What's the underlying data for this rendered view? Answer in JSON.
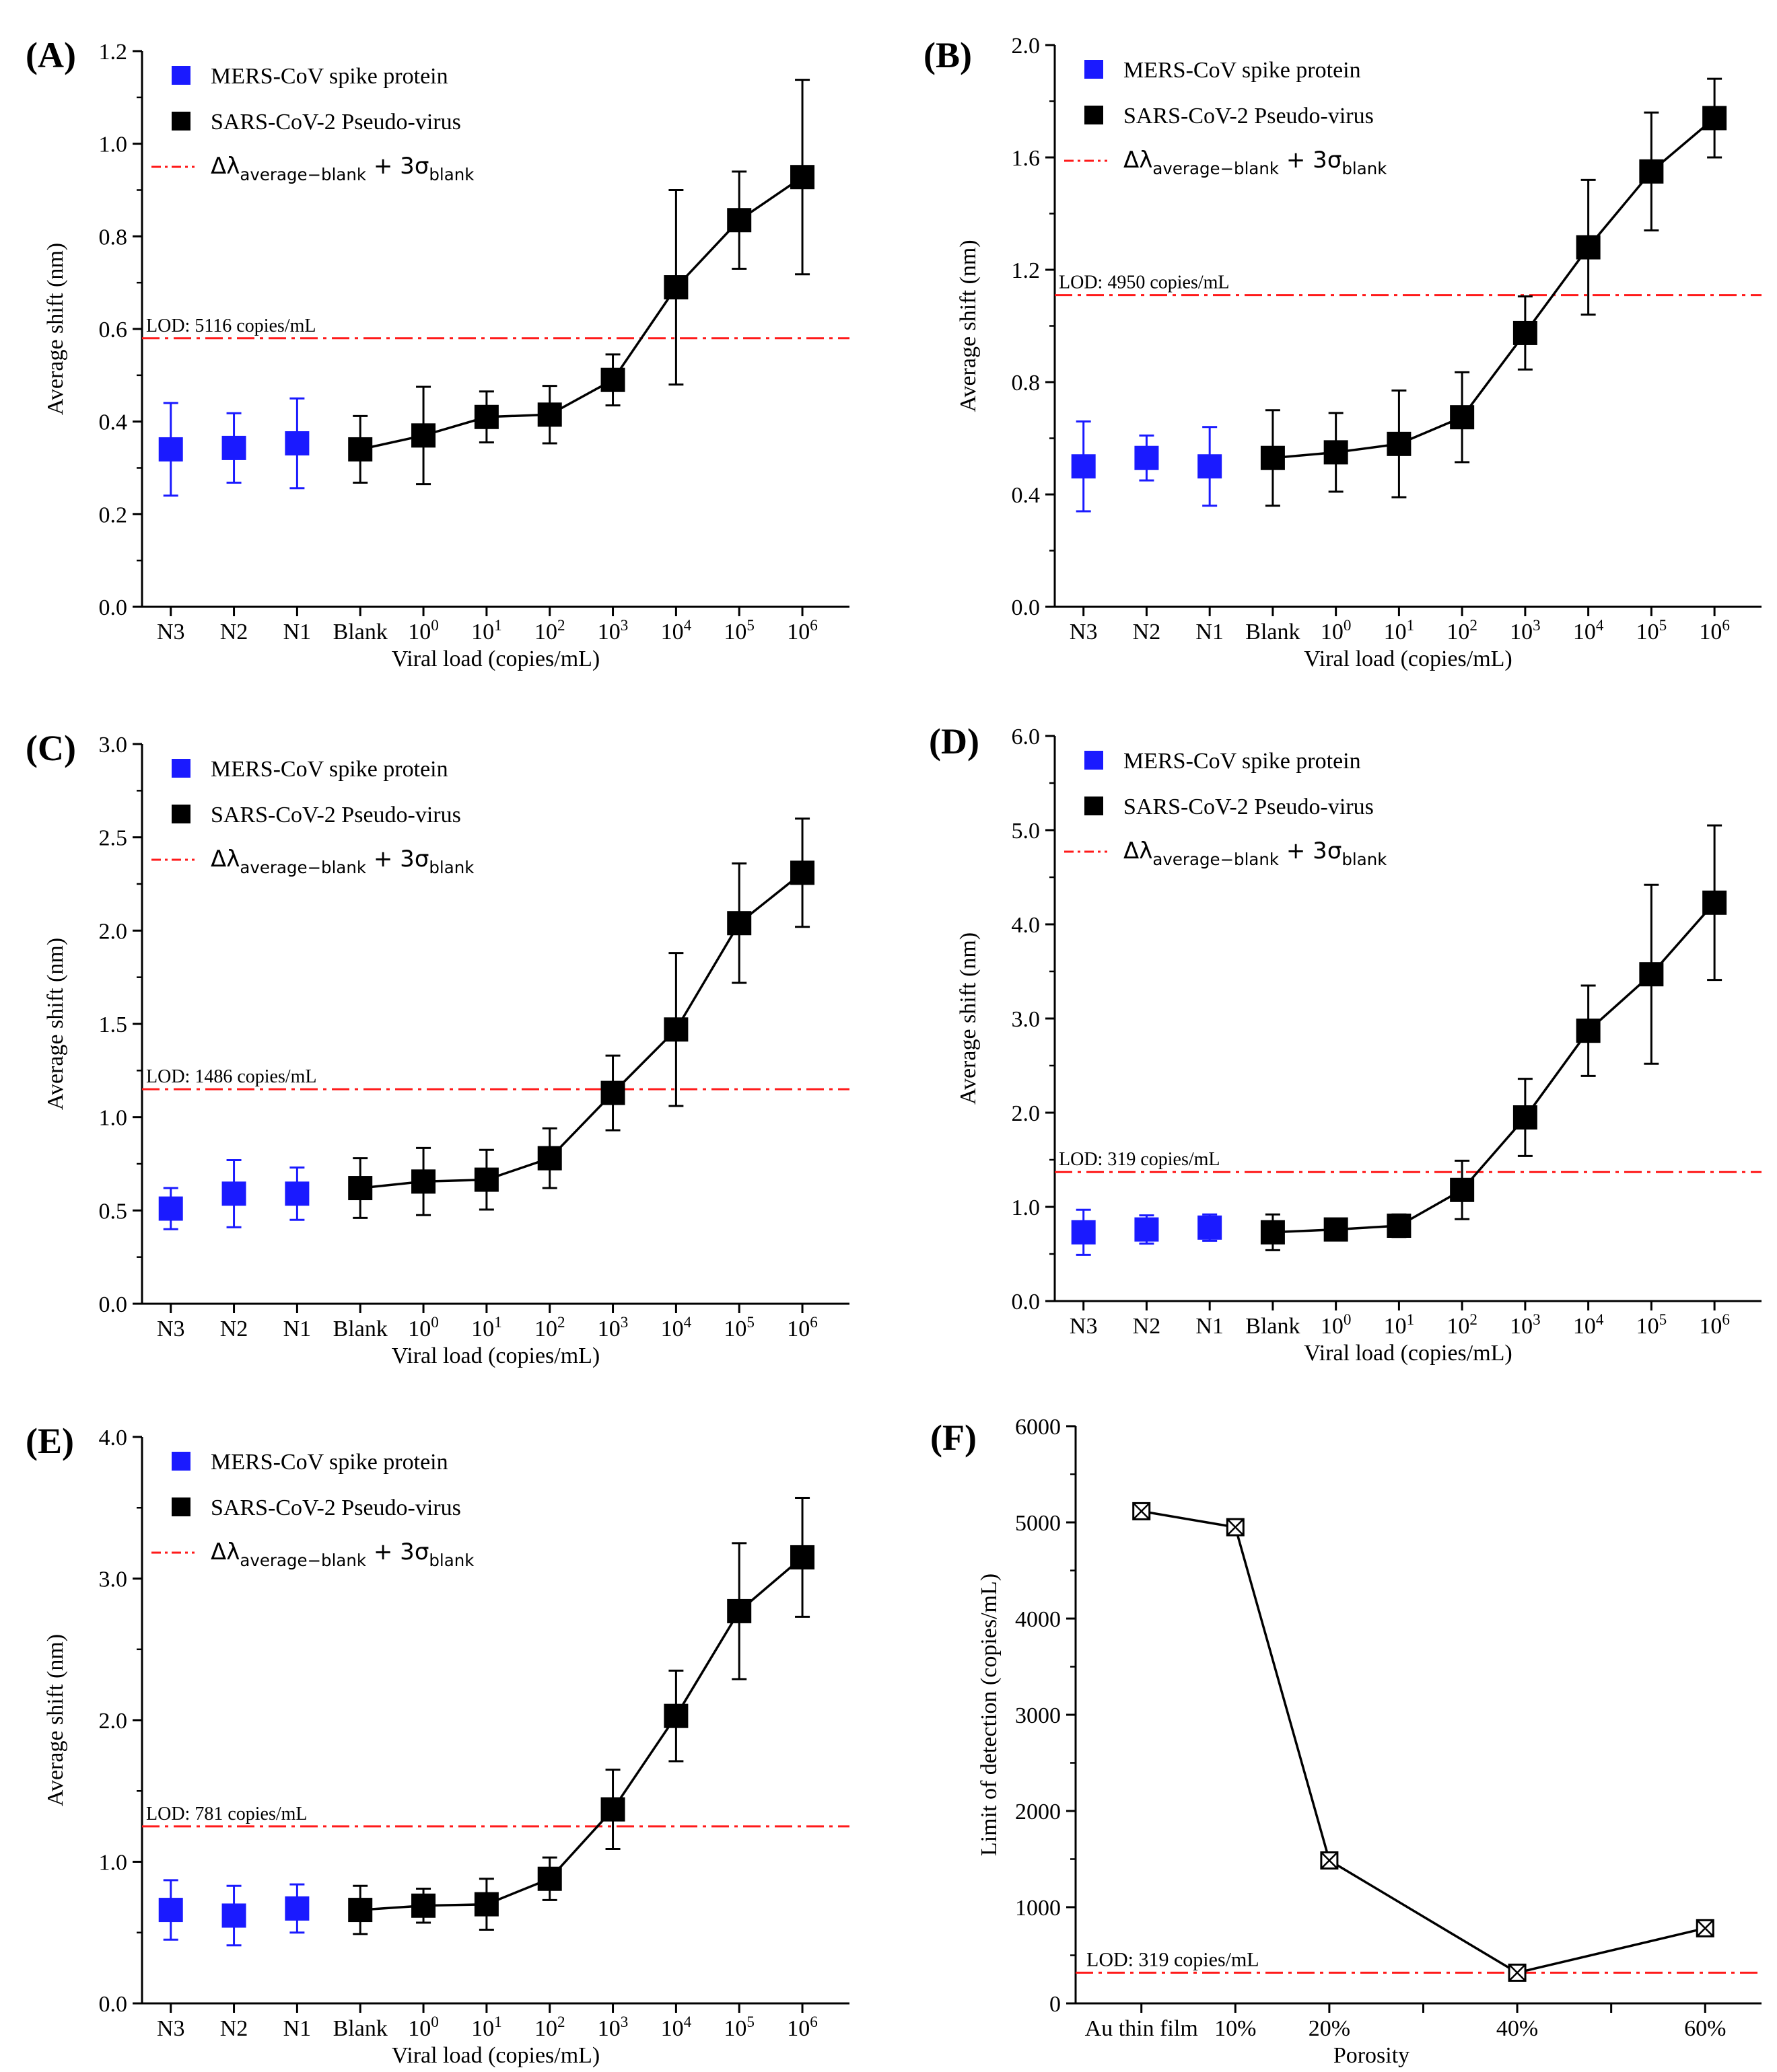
{
  "x_categories": [
    "N3",
    "N2",
    "N1",
    "Blank",
    "10^0",
    "10^1",
    "10^2",
    "10^3",
    "10^4",
    "10^5",
    "10^6"
  ],
  "colors": {
    "blue": "#1a1aff",
    "black": "#000000",
    "red": "#ff1a1a"
  },
  "legend": {
    "mers": "MERS-CoV spike protein",
    "sars": "SARS-CoV-2 Pseudo-virus",
    "threshold_delta": "Δλ",
    "threshold_sub1": "average−blank",
    "threshold_plus": " + 3σ",
    "threshold_sub2": "blank"
  },
  "chart_data": [
    {
      "panel": "(A)",
      "type": "line",
      "xlabel": "Viral load (copies/mL)",
      "ylabel": "Average shift (nm)",
      "ylim": [
        0,
        1.2
      ],
      "yticks": [
        "0.0",
        "0.2",
        "0.4",
        "0.6",
        "0.8",
        "1.0",
        "1.2"
      ],
      "lod_value": 0.58,
      "lod_label": "LOD: 5116 copies/mL",
      "series": [
        {
          "name": "MERS-CoV spike protein",
          "values": [
            0.34,
            0.343,
            0.353
          ],
          "errors": [
            0.1,
            0.075,
            0.097
          ]
        },
        {
          "name": "SARS-CoV-2 Pseudo-virus",
          "values": [
            0.34,
            0.37,
            0.41,
            0.415,
            0.49,
            0.69,
            0.835,
            0.928
          ],
          "errors": [
            0.072,
            0.105,
            0.055,
            0.062,
            0.055,
            0.21,
            0.105,
            0.21
          ]
        }
      ]
    },
    {
      "panel": "(B)",
      "type": "line",
      "xlabel": "Viral load (copies/mL)",
      "ylabel": "Average shift (nm)",
      "ylim": [
        0,
        2.0
      ],
      "yticks": [
        "0.0",
        "0.4",
        "0.8",
        "1.2",
        "1.6",
        "2.0"
      ],
      "lod_value": 1.11,
      "lod_label": "LOD: 4950 copies/mL",
      "series": [
        {
          "name": "MERS-CoV spike protein",
          "values": [
            0.5,
            0.53,
            0.5
          ],
          "errors": [
            0.16,
            0.08,
            0.14
          ]
        },
        {
          "name": "SARS-CoV-2 Pseudo-virus",
          "values": [
            0.53,
            0.55,
            0.58,
            0.675,
            0.975,
            1.28,
            1.55,
            1.74
          ],
          "errors": [
            0.17,
            0.14,
            0.19,
            0.16,
            0.13,
            0.24,
            0.21,
            0.14
          ]
        }
      ]
    },
    {
      "panel": "(C)",
      "type": "line",
      "xlabel": "Viral load (copies/mL)",
      "ylabel": "Average shift (nm)",
      "ylim": [
        0,
        3.0
      ],
      "yticks": [
        "0.0",
        "0.5",
        "1.0",
        "1.5",
        "2.0",
        "2.5",
        "3.0"
      ],
      "lod_value": 1.15,
      "lod_label": "LOD: 1486 copies/mL",
      "series": [
        {
          "name": "MERS-CoV spike protein",
          "values": [
            0.51,
            0.59,
            0.59
          ],
          "errors": [
            0.11,
            0.18,
            0.14
          ]
        },
        {
          "name": "SARS-CoV-2 Pseudo-virus",
          "values": [
            0.62,
            0.655,
            0.665,
            0.78,
            1.13,
            1.47,
            2.04,
            2.31
          ],
          "errors": [
            0.16,
            0.18,
            0.16,
            0.16,
            0.2,
            0.41,
            0.32,
            0.29
          ]
        }
      ]
    },
    {
      "panel": "(D)",
      "type": "line",
      "xlabel": "Viral load (copies/mL)",
      "ylabel": "Average shift (nm)",
      "ylim": [
        0,
        6.0
      ],
      "yticks": [
        "0.0",
        "1.0",
        "2.0",
        "3.0",
        "4.0",
        "5.0",
        "6.0"
      ],
      "lod_value": 1.37,
      "lod_label": "LOD: 319 copies/mL",
      "series": [
        {
          "name": "MERS-CoV spike protein",
          "values": [
            0.73,
            0.76,
            0.78
          ],
          "errors": [
            0.24,
            0.15,
            0.14
          ]
        },
        {
          "name": "SARS-CoV-2 Pseudo-virus",
          "values": [
            0.73,
            0.76,
            0.8,
            1.18,
            1.95,
            2.87,
            3.47,
            4.23
          ],
          "errors": [
            0.19,
            0.06,
            0.12,
            0.31,
            0.41,
            0.48,
            0.95,
            0.82
          ]
        }
      ]
    },
    {
      "panel": "(E)",
      "type": "line",
      "xlabel": "Viral load (copies/mL)",
      "ylabel": "Average shift (nm)",
      "ylim": [
        0,
        4.0
      ],
      "yticks": [
        "0.0",
        "1.0",
        "2.0",
        "3.0",
        "4.0"
      ],
      "lod_value": 1.25,
      "lod_label": "LOD: 781 copies/mL",
      "series": [
        {
          "name": "MERS-CoV spike protein",
          "values": [
            0.66,
            0.62,
            0.67
          ],
          "errors": [
            0.21,
            0.21,
            0.17
          ]
        },
        {
          "name": "SARS-CoV-2 Pseudo-virus",
          "values": [
            0.66,
            0.69,
            0.7,
            0.88,
            1.37,
            2.03,
            2.77,
            3.15
          ],
          "errors": [
            0.17,
            0.12,
            0.18,
            0.15,
            0.28,
            0.32,
            0.48,
            0.42
          ]
        }
      ]
    },
    {
      "panel": "(F)",
      "type": "line",
      "xlabel": "Porosity",
      "ylabel": "Limit of detection (copies/mL)",
      "ylim": [
        0,
        6000
      ],
      "yticks": [
        "0",
        "1000",
        "2000",
        "3000",
        "4000",
        "5000",
        "6000"
      ],
      "categories": [
        "Au thin film",
        "10%",
        "20%",
        "40%",
        "60%"
      ],
      "x": [
        0,
        10,
        20,
        40,
        60
      ],
      "xlim": [
        -7,
        66
      ],
      "values": [
        5116,
        4950,
        1486,
        319,
        781
      ],
      "lod_value": 319,
      "lod_label": "LOD: 319 copies/mL"
    }
  ]
}
